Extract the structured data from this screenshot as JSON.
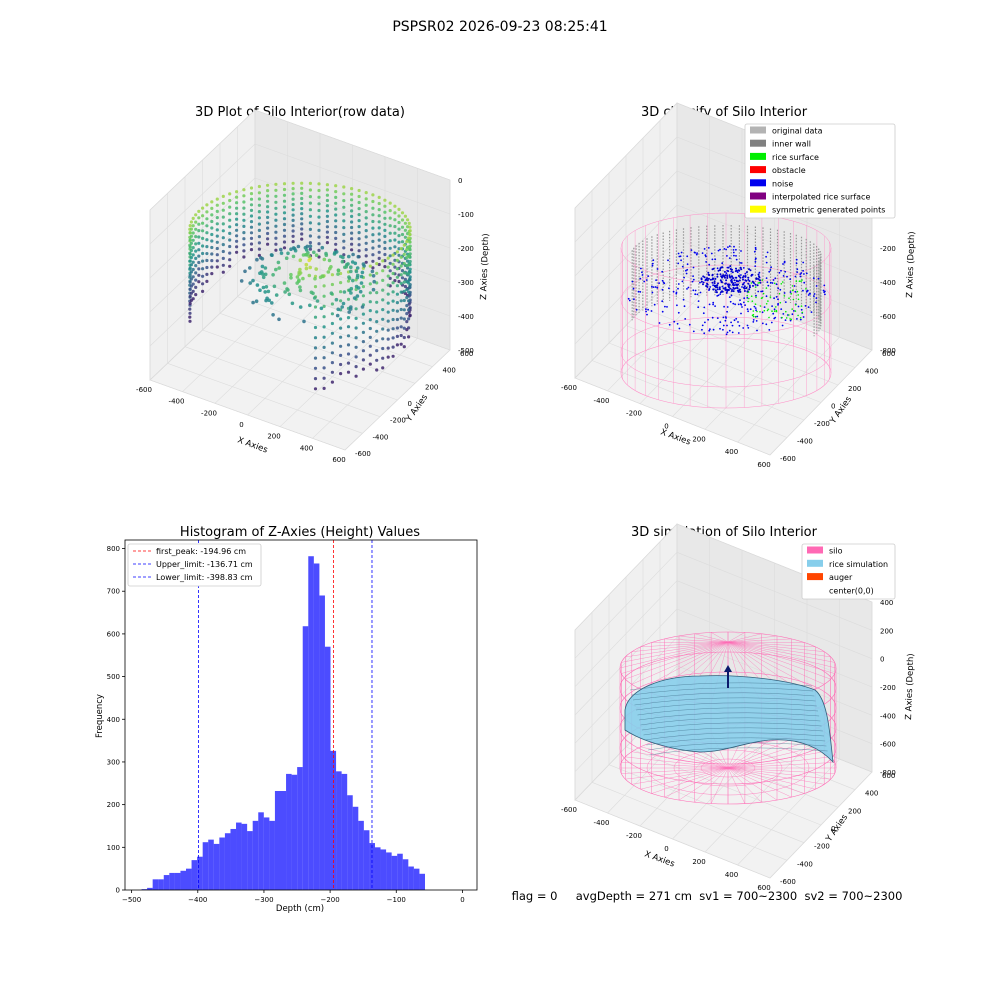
{
  "figure": {
    "suptitle": "PSPSR02 2026-09-23 08:25:41",
    "status_line": "flag = 0     avgDepth = 271 cm  sv1 = 700~2300  sv2 = 700~2300"
  },
  "chart_data": [
    {
      "type": "scatter",
      "panel": "top-left",
      "title": "3D Plot of Silo Interior(row data)",
      "xlabel": "X Axies",
      "ylabel": "Y Axies",
      "zlabel": "Z Axies (Depth)",
      "xticks": [
        "-600",
        "-400",
        "-200",
        "0",
        "200",
        "400",
        "600"
      ],
      "yticks": [
        "-600",
        "-400",
        "-200",
        "0",
        "200",
        "400",
        "600"
      ],
      "zticks": [
        "0",
        "-100",
        "-200",
        "-300",
        "-400",
        "-500"
      ],
      "colormap": "viridis"
    },
    {
      "type": "scatter",
      "panel": "top-right",
      "title": "3D classify of Silo Interior",
      "xlabel": "X Axies",
      "ylabel": "Y Axies",
      "zlabel": "Z Axies (Depth)",
      "xticks": [
        "-600",
        "-400",
        "-200",
        "0",
        "200",
        "400",
        "600"
      ],
      "yticks": [
        "-600",
        "-400",
        "-200",
        "0",
        "200",
        "400",
        "600"
      ],
      "zticks": [
        "200",
        "0",
        "-200",
        "-400",
        "-600",
        "-800"
      ],
      "legend_position": "top-right",
      "legend": [
        {
          "label": "original data",
          "color": "#b3b3b3"
        },
        {
          "label": "inner wall",
          "color": "#808080"
        },
        {
          "label": "rice surface",
          "color": "#00ee00"
        },
        {
          "label": "obstacle",
          "color": "#ff0000"
        },
        {
          "label": "noise",
          "color": "#0000ee"
        },
        {
          "label": "interpolated rice surface",
          "color": "#800080"
        },
        {
          "label": "symmetric generated points",
          "color": "#ffff00"
        }
      ]
    },
    {
      "type": "bar",
      "panel": "bottom-left",
      "title": "Histogram of Z-Axies (Height) Values",
      "xlabel": "Depth (cm)",
      "ylabel": "Frequency",
      "xlim": [
        -510,
        22
      ],
      "ylim": [
        0,
        820
      ],
      "xticks": [
        -500,
        -400,
        -300,
        -200,
        -100,
        0
      ],
      "yticks": [
        0,
        100,
        200,
        300,
        400,
        500,
        600,
        700,
        800
      ],
      "bin_width": 8.4,
      "bin_starts": [
        -485.0,
        -476.6,
        -468.2,
        -459.8,
        -451.4,
        -443.0,
        -434.6,
        -426.2,
        -417.8,
        -409.4,
        -401.0,
        -392.6,
        -384.2,
        -375.8,
        -367.4,
        -359.0,
        -350.6,
        -342.2,
        -333.8,
        -325.4,
        -317.0,
        -308.6,
        -300.2,
        -291.8,
        -283.4,
        -275.0,
        -266.6,
        -258.2,
        -249.8,
        -241.4,
        -233.0,
        -224.6,
        -216.2,
        -207.8,
        -199.4,
        -191.0,
        -182.6,
        -174.2,
        -165.8,
        -157.4,
        -149.0,
        -140.6,
        -132.2,
        -123.8,
        -115.4,
        -107.0,
        -98.6,
        -90.2,
        -81.8,
        -73.4,
        -65.0,
        -56.6,
        -48.2,
        -39.8,
        -31.4,
        -23.0,
        -14.6,
        -6.2
      ],
      "values": [
        2,
        5,
        25,
        25,
        35,
        40,
        40,
        45,
        50,
        70,
        78,
        112,
        118,
        108,
        123,
        133,
        143,
        158,
        155,
        138,
        162,
        182,
        170,
        162,
        232,
        232,
        272,
        270,
        288,
        618,
        782,
        765,
        690,
        570,
        326,
        278,
        272,
        222,
        195,
        162,
        140,
        110,
        100,
        95,
        88,
        80,
        85,
        72,
        55,
        50,
        38,
        0,
        0,
        0,
        0,
        0,
        0,
        0
      ],
      "bar_color": "#0000ff",
      "legend_position": "top-left",
      "vlines": [
        {
          "label": "first_peak: -194.96 cm",
          "x": -194.96,
          "color": "#ff0000"
        },
        {
          "label": "Upper_limit: -136.71 cm",
          "x": -136.71,
          "color": "#0000ff"
        },
        {
          "label": "Lower_limit: -398.83 cm",
          "x": -398.83,
          "color": "#0000ff"
        }
      ]
    },
    {
      "type": "scatter",
      "panel": "bottom-right",
      "title": "3D simulation of Silo Interior",
      "xlabel": "X Axies",
      "ylabel": "Y Axies",
      "zlabel": "Z Axies (Depth)",
      "xticks": [
        "-600",
        "-400",
        "-200",
        "0",
        "200",
        "400",
        "600"
      ],
      "yticks": [
        "-600",
        "-400",
        "-200",
        "0",
        "200",
        "400",
        "600"
      ],
      "zticks": [
        "400",
        "200",
        "0",
        "-200",
        "-400",
        "-600",
        "-800"
      ],
      "legend_position": "top-right",
      "legend": [
        {
          "label": "silo",
          "color": "#ff69b4"
        },
        {
          "label": "rice simulation",
          "color": "#87ceeb"
        },
        {
          "label": "auger",
          "color": "#ff4500"
        },
        {
          "label": "center(0,0)",
          "color": "none"
        }
      ]
    }
  ]
}
